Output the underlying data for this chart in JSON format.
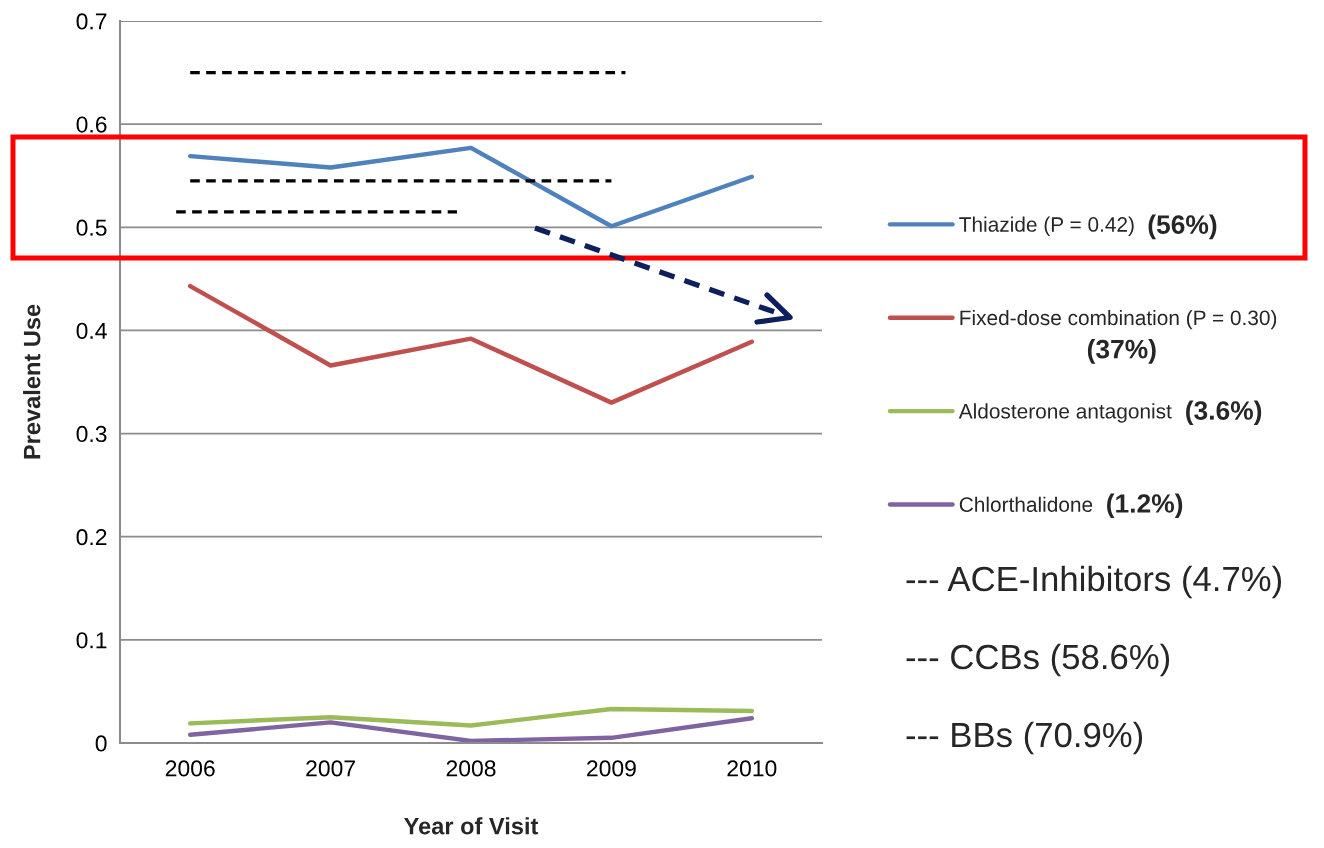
{
  "chart_data": {
    "type": "line",
    "xlabel": "Year of Visit",
    "ylabel": "Prevalent Use",
    "x": [
      2006,
      2007,
      2008,
      2009,
      2010
    ],
    "xlim": [
      2005.5,
      2010.5
    ],
    "xticks": [
      2006,
      2007,
      2008,
      2009,
      2010
    ],
    "ylim": [
      0,
      0.7
    ],
    "yticks": [
      0,
      0.1,
      0.2,
      0.3,
      0.4,
      0.5,
      0.6,
      0.7
    ],
    "grid": "y",
    "legend": "right",
    "series": [
      {
        "name": "Thiazide (P = 0.42)",
        "color": "#4f81bd",
        "values": [
          0.569,
          0.558,
          0.577,
          0.501,
          0.549
        ]
      },
      {
        "name": "Fixed-dose combination (P = 0.30)",
        "color": "#c0504d",
        "values": [
          0.443,
          0.366,
          0.392,
          0.33,
          0.389
        ]
      },
      {
        "name": "Aldosterone antagonist",
        "color": "#9bbb59",
        "values": [
          0.019,
          0.025,
          0.017,
          0.033,
          0.031
        ]
      },
      {
        "name": "Chlorthalidone",
        "color": "#8064a2",
        "values": [
          0.008,
          0.02,
          0.002,
          0.005,
          0.024
        ]
      },
      {
        "color": "#000000",
        "line_style": "dashed",
        "x": [
          2006.0,
          2009.1
        ],
        "values": [
          0.65,
          0.65
        ]
      },
      {
        "color": "#000000",
        "line_style": "dashed",
        "x": [
          2006.0,
          2009.0
        ],
        "values": [
          0.545,
          0.545
        ]
      },
      {
        "color": "#000000",
        "line_style": "dashed",
        "x": [
          2005.9,
          2007.9
        ],
        "values": [
          0.515,
          0.515
        ]
      }
    ],
    "annotations": [
      "(56%)",
      "(37%)",
      "(3.6%)",
      "(1.2%)",
      "--- ACE-Inhibitors (4.7%)",
      "--- CCBs (58.6%)",
      "--- BBs (70.9%)"
    ]
  }
}
